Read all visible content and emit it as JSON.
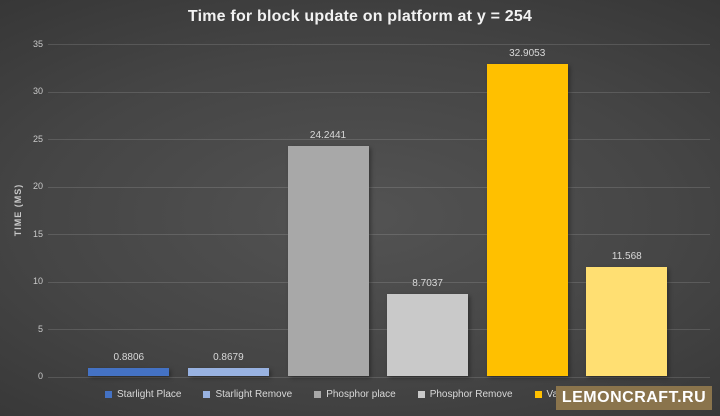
{
  "title": "Time for block update on platform at y = 254",
  "watermark": "LEMONCRAFT.RU",
  "colors": {
    "background_center": "#535353",
    "background_edge": "#242424",
    "gridline": "rgba(255,255,255,0.13)",
    "axis_text": "#c9c9c9",
    "label_text": "#d9d9d9",
    "title_text": "#f2f2f2",
    "watermark_bg": "#8a744c",
    "watermark_text": "#ffffff"
  },
  "chart_data": {
    "type": "bar",
    "title": "Time for block update on platform at y = 254",
    "xlabel": "",
    "ylabel": "TIME (MS)",
    "ylim": [
      0,
      35
    ],
    "yticks": [
      0,
      5,
      10,
      15,
      20,
      25,
      30,
      35
    ],
    "grid": true,
    "legend_position": "bottom",
    "series": [
      {
        "name": "Starlight Place",
        "value": 0.8806,
        "label": "0.8806",
        "color": "#4472C4"
      },
      {
        "name": "Starlight Remove",
        "value": 0.8679,
        "label": "0.8679",
        "color": "#98B2E1"
      },
      {
        "name": "Phosphor place",
        "value": 24.2441,
        "label": "24.2441",
        "color": "#A8A8A8"
      },
      {
        "name": "Phosphor Remove",
        "value": 8.7037,
        "label": "8.7037",
        "color": "#C9C9C9"
      },
      {
        "name": "Vanilla place",
        "value": 32.9053,
        "label": "32.9053",
        "color": "#FFC000"
      },
      {
        "name": "",
        "value": 11.568,
        "label": "11.568",
        "color": "#FFDF72",
        "legend_label_hidden": true
      }
    ]
  }
}
